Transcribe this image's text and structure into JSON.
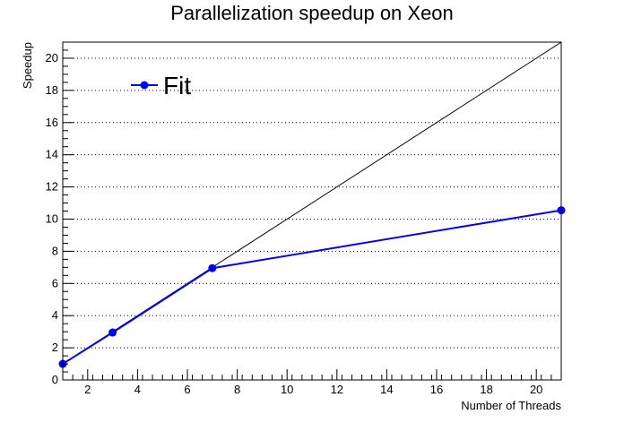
{
  "chart_data": {
    "type": "line",
    "title": "Parallelization speedup on Xeon",
    "xlabel": "Number of Threads",
    "ylabel": "Speedup",
    "xlim": [
      1,
      21
    ],
    "ylim": [
      0,
      21
    ],
    "x_ticks": [
      2,
      4,
      6,
      8,
      10,
      12,
      14,
      16,
      18,
      20
    ],
    "y_ticks": [
      0,
      2,
      4,
      6,
      8,
      10,
      12,
      14,
      16,
      18,
      20
    ],
    "grid": "horizontal dotted",
    "legend_position": "top-left",
    "series": [
      {
        "name": "Fit",
        "color": "#0000ff",
        "marker": "circle",
        "x": [
          1,
          3,
          7,
          21
        ],
        "y": [
          1.0,
          2.95,
          6.95,
          10.55
        ]
      }
    ],
    "reference_line": {
      "color": "#000000",
      "x": [
        1,
        21
      ],
      "y": [
        1,
        21
      ]
    }
  }
}
